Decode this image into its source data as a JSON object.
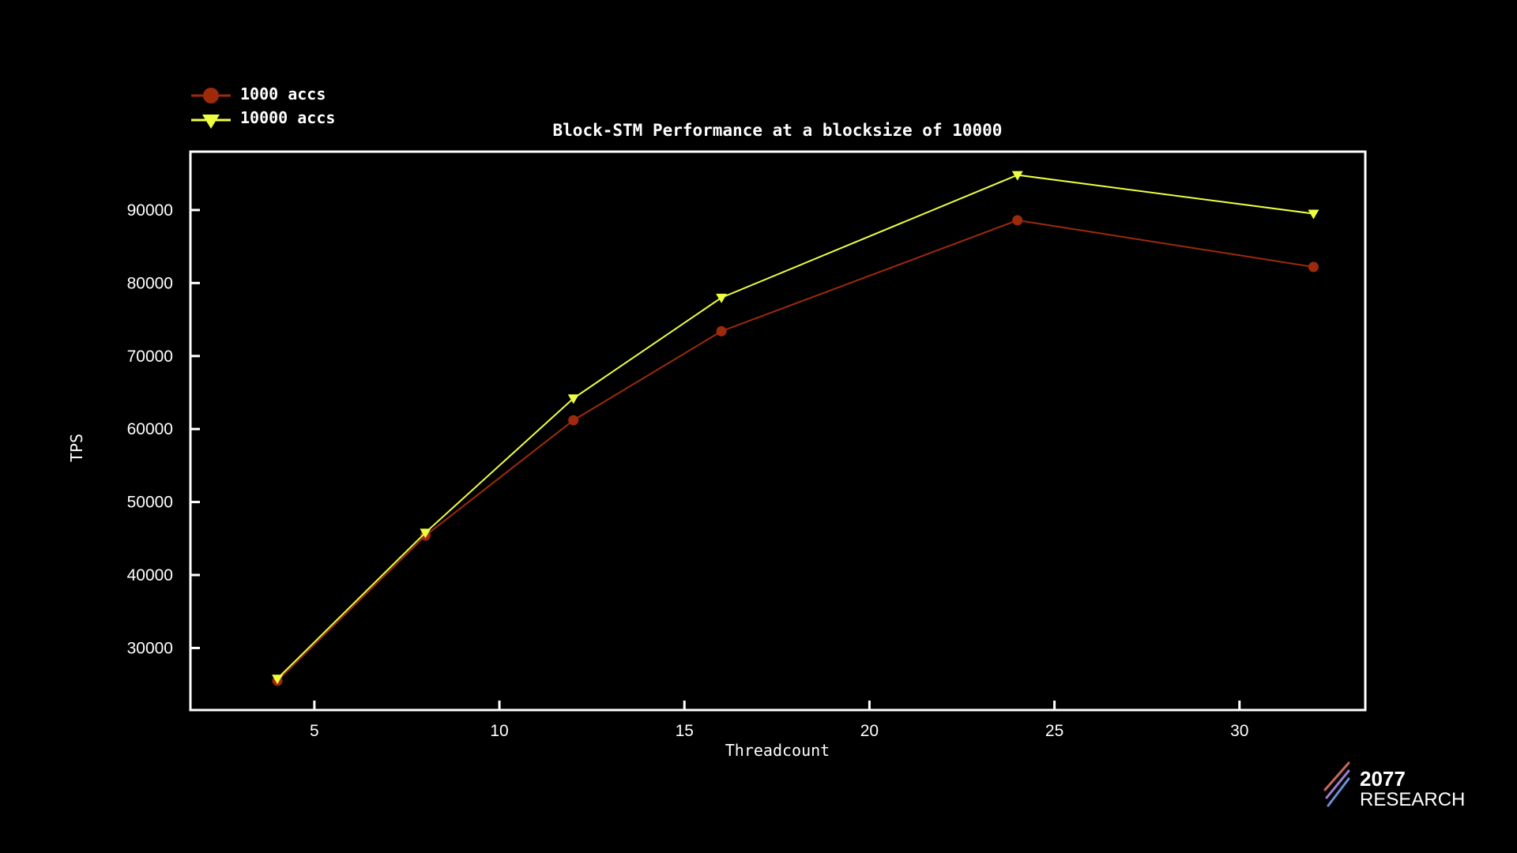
{
  "chart_data": {
    "type": "line",
    "title": "Block-STM Performance at a blocksize of 10000",
    "xlabel": "Threadcount",
    "ylabel": "TPS",
    "x": [
      4,
      8,
      12,
      16,
      24,
      32
    ],
    "xlim": [
      1.65,
      33.4
    ],
    "ylim": [
      21500,
      98000
    ],
    "xticks": [
      5,
      10,
      15,
      20,
      25,
      30
    ],
    "yticks": [
      30000,
      40000,
      50000,
      60000,
      70000,
      80000,
      90000
    ],
    "grid": false,
    "legend_position": "top-left",
    "series": [
      {
        "name": "1000 accs",
        "marker": "circle",
        "color": "#9e2a0b",
        "values": [
          25500,
          45400,
          61200,
          73400,
          88600,
          82200
        ]
      },
      {
        "name": "10000 accs",
        "marker": "triangle-down",
        "color": "#eeff41",
        "values": [
          25800,
          45800,
          64200,
          78000,
          94800,
          89500
        ]
      }
    ]
  },
  "colors": {
    "background": "#000000",
    "axes": "#ffffff",
    "logo_stripes": [
      "#c8695a",
      "#9b7ec8",
      "#6b8fd6"
    ]
  },
  "logo": {
    "number": "2077",
    "word": "RESEARCH"
  }
}
